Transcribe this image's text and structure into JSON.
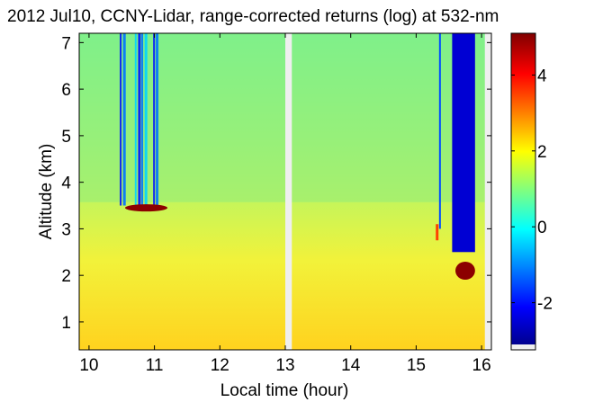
{
  "chart_data": {
    "type": "heatmap",
    "title": "2012 Jul10, CCNY-Lidar, range-corrected returns (log) at 532-nm",
    "xlabel": "Local time (hour)",
    "ylabel": "Altitude (km)",
    "xlim": [
      9.85,
      16.15
    ],
    "ylim": [
      0.4,
      7.2
    ],
    "xticks": [
      10,
      11,
      12,
      13,
      14,
      15,
      16
    ],
    "yticks": [
      1,
      2,
      3,
      4,
      5,
      6,
      7
    ],
    "colorbar": {
      "ticks": [
        -2,
        0,
        2,
        4
      ],
      "range": [
        -3.1,
        5.1
      ],
      "colormap": [
        "#00008f",
        "#0000ff",
        "#00ffff",
        "#ffff00",
        "#ff0000",
        "#800000"
      ]
    },
    "data_gaps": [
      {
        "start": 13.0,
        "end": 13.1
      },
      {
        "start": 16.05,
        "end": 16.15
      }
    ],
    "features": {
      "cloud_layer_1": {
        "start": 10.8,
        "end": 11.2,
        "altitude": 3.45,
        "value": 5.0
      },
      "cloud_layer_2": {
        "start": 15.6,
        "end": 15.9,
        "altitude": 2.1,
        "value": 5.0
      },
      "attenuated_columns_1": {
        "start": 10.45,
        "end": 11.05,
        "from_altitude": 3.5,
        "value": -2.0
      },
      "attenuated_columns_2": {
        "start": 15.55,
        "end": 15.9,
        "from_altitude": 2.5,
        "value": -2.5
      },
      "boundary_layer_top": 2.8,
      "free_troposphere_value": 1.0,
      "boundary_layer_value": 2.4
    }
  }
}
